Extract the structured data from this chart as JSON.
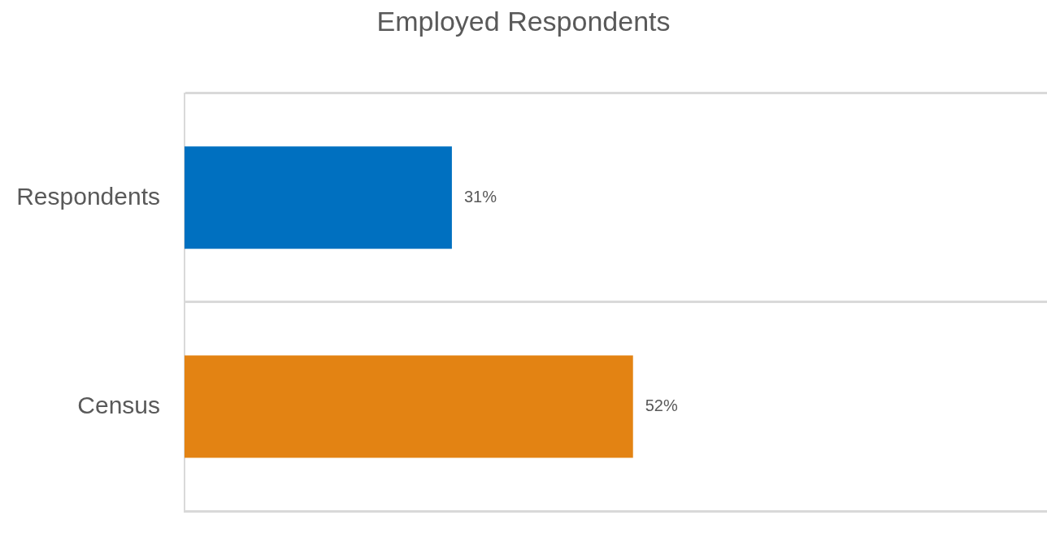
{
  "chart_data": {
    "type": "bar",
    "orientation": "horizontal",
    "title": "Employed Respondents",
    "categories": [
      "Respondents",
      "Census"
    ],
    "values": [
      31,
      52
    ],
    "colors": [
      "#0070c0",
      "#e38313"
    ],
    "value_labels": [
      "31%",
      "52%"
    ],
    "xlim": [
      0,
      100
    ],
    "tick_labels": "y",
    "grid": "y",
    "legend": false
  }
}
